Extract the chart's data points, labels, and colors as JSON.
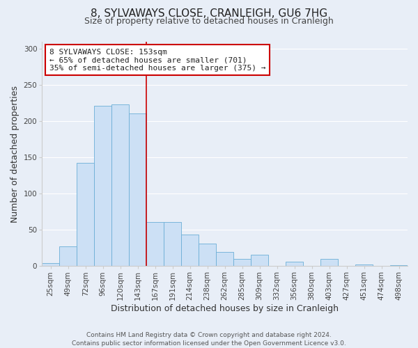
{
  "title": "8, SYLVAWAYS CLOSE, CRANLEIGH, GU6 7HG",
  "subtitle": "Size of property relative to detached houses in Cranleigh",
  "xlabel": "Distribution of detached houses by size in Cranleigh",
  "ylabel": "Number of detached properties",
  "bar_labels": [
    "25sqm",
    "49sqm",
    "72sqm",
    "96sqm",
    "120sqm",
    "143sqm",
    "167sqm",
    "191sqm",
    "214sqm",
    "238sqm",
    "262sqm",
    "285sqm",
    "309sqm",
    "332sqm",
    "356sqm",
    "380sqm",
    "403sqm",
    "427sqm",
    "451sqm",
    "474sqm",
    "498sqm"
  ],
  "bar_values": [
    4,
    27,
    143,
    222,
    223,
    211,
    61,
    61,
    44,
    31,
    20,
    10,
    16,
    0,
    6,
    0,
    10,
    0,
    2,
    0,
    1
  ],
  "bar_color": "#cce0f5",
  "bar_edge_color": "#6baed6",
  "vline_x": 5.5,
  "vline_color": "#cc0000",
  "ylim": [
    0,
    310
  ],
  "yticks": [
    0,
    50,
    100,
    150,
    200,
    250,
    300
  ],
  "annotation_title": "8 SYLVAWAYS CLOSE: 153sqm",
  "annotation_line1": "← 65% of detached houses are smaller (701)",
  "annotation_line2": "35% of semi-detached houses are larger (375) →",
  "annotation_box_color": "#ffffff",
  "annotation_box_edge": "#cc0000",
  "footer_line1": "Contains HM Land Registry data © Crown copyright and database right 2024.",
  "footer_line2": "Contains public sector information licensed under the Open Government Licence v3.0.",
  "background_color": "#e8eef7",
  "grid_color": "#ffffff",
  "title_fontsize": 11,
  "subtitle_fontsize": 9,
  "axis_label_fontsize": 9,
  "tick_fontsize": 7.5,
  "annotation_fontsize": 8,
  "footer_fontsize": 6.5
}
